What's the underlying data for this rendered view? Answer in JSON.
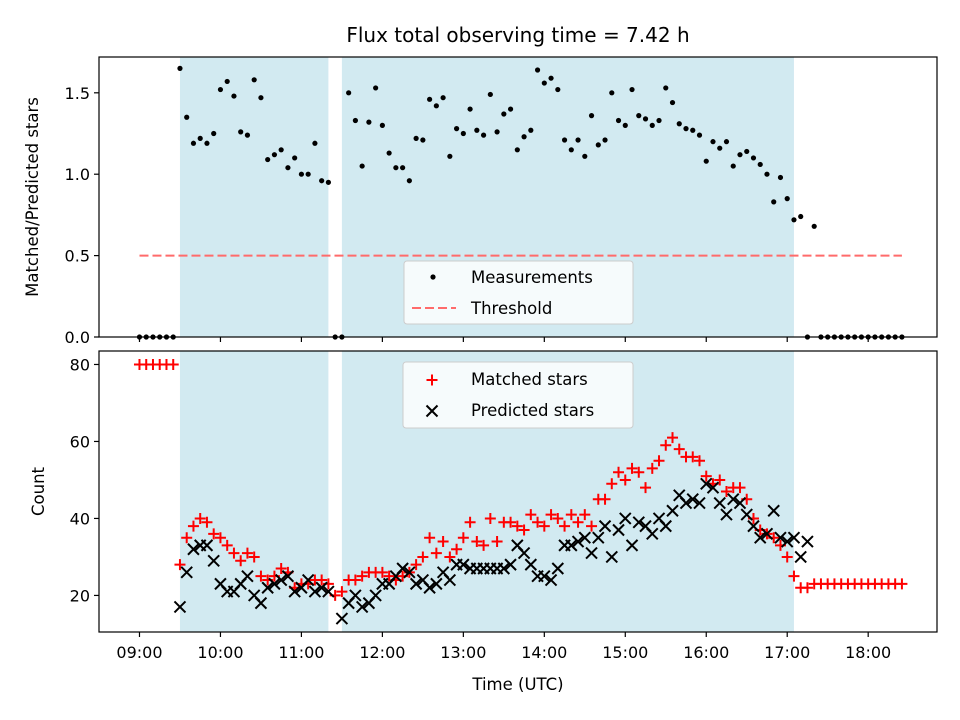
{
  "chart_data": [
    {
      "type": "scatter",
      "title": "Flux total observing time = 7.42 h",
      "xlabel": "",
      "ylabel": "Matched/Predicted stars",
      "ylim": [
        0,
        1.72
      ],
      "yticks": [
        "0.0",
        "0.5",
        "1.0",
        "1.5"
      ],
      "shaded_intervals": [
        [
          "09:30",
          "11:20"
        ],
        [
          "11:30",
          "17:05"
        ]
      ],
      "threshold": 0.5,
      "legend": {
        "position": "lower-center",
        "entries": [
          "Measurements",
          "Threshold"
        ]
      },
      "colors": {
        "shade": "#add8e6",
        "points": "#000000",
        "threshold": "#ff6b6b"
      },
      "series": [
        {
          "name": "Measurements",
          "x": [
            "09:00",
            "09:05",
            "09:10",
            "09:15",
            "09:20",
            "09:25",
            "09:30",
            "09:35",
            "09:40",
            "09:45",
            "09:50",
            "09:55",
            "10:00",
            "10:05",
            "10:10",
            "10:15",
            "10:20",
            "10:25",
            "10:30",
            "10:35",
            "10:40",
            "10:45",
            "10:50",
            "10:55",
            "11:00",
            "11:05",
            "11:10",
            "11:15",
            "11:20",
            "11:25",
            "11:30",
            "11:35",
            "11:40",
            "11:45",
            "11:50",
            "11:55",
            "12:00",
            "12:05",
            "12:10",
            "12:15",
            "12:20",
            "12:25",
            "12:30",
            "12:35",
            "12:40",
            "12:45",
            "12:50",
            "12:55",
            "13:00",
            "13:05",
            "13:10",
            "13:15",
            "13:20",
            "13:25",
            "13:30",
            "13:35",
            "13:40",
            "13:45",
            "13:50",
            "13:55",
            "14:00",
            "14:05",
            "14:10",
            "14:15",
            "14:20",
            "14:25",
            "14:30",
            "14:35",
            "14:40",
            "14:45",
            "14:50",
            "14:55",
            "15:00",
            "15:05",
            "15:10",
            "15:15",
            "15:20",
            "15:25",
            "15:30",
            "15:35",
            "15:40",
            "15:45",
            "15:50",
            "15:55",
            "16:00",
            "16:05",
            "16:10",
            "16:15",
            "16:20",
            "16:25",
            "16:30",
            "16:35",
            "16:40",
            "16:45",
            "16:50",
            "16:55",
            "17:00",
            "17:05",
            "17:10",
            "17:15",
            "17:20",
            "17:25",
            "17:30",
            "17:35",
            "17:40",
            "17:45",
            "17:50",
            "17:55",
            "18:00",
            "18:05",
            "18:10",
            "18:15",
            "18:20",
            "18:25"
          ],
          "y": [
            0,
            0,
            0,
            0,
            0,
            0,
            1.65,
            1.35,
            1.19,
            1.22,
            1.19,
            1.25,
            1.52,
            1.57,
            1.48,
            1.26,
            1.24,
            1.58,
            1.47,
            1.09,
            1.12,
            1.15,
            1.04,
            1.1,
            1.0,
            1.0,
            1.19,
            0.96,
            0.95,
            0,
            0,
            1.5,
            1.33,
            1.05,
            1.32,
            1.53,
            1.3,
            1.13,
            1.04,
            1.04,
            0.96,
            1.22,
            1.21,
            1.46,
            1.42,
            1.47,
            1.11,
            1.28,
            1.25,
            1.4,
            1.27,
            1.24,
            1.49,
            1.26,
            1.37,
            1.4,
            1.15,
            1.23,
            1.27,
            1.64,
            1.56,
            1.59,
            1.52,
            1.21,
            1.15,
            1.21,
            1.11,
            1.36,
            1.18,
            1.21,
            1.5,
            1.33,
            1.3,
            1.52,
            1.36,
            1.34,
            1.3,
            1.33,
            1.53,
            1.44,
            1.31,
            1.28,
            1.27,
            1.24,
            1.08,
            1.2,
            1.16,
            1.2,
            1.05,
            1.12,
            1.14,
            1.1,
            1.06,
            1.0,
            0.83,
            0.98,
            0.85,
            0.72,
            0.74,
            0,
            0.68,
            0,
            0,
            0,
            0,
            0,
            0,
            0,
            0,
            0,
            0,
            0,
            0,
            0
          ]
        }
      ]
    },
    {
      "type": "scatter",
      "title": "",
      "xlabel": "Time (UTC)",
      "ylabel": "Count",
      "ylim": [
        10.5,
        83.5
      ],
      "yticks": [
        "20",
        "40",
        "60",
        "80"
      ],
      "xticks": [
        "09:00",
        "10:00",
        "11:00",
        "12:00",
        "13:00",
        "14:00",
        "15:00",
        "16:00",
        "17:00",
        "18:00"
      ],
      "shaded_intervals": [
        [
          "09:30",
          "11:20"
        ],
        [
          "11:30",
          "17:05"
        ]
      ],
      "legend": {
        "position": "top-center",
        "entries": [
          "Matched stars",
          "Predicted stars"
        ]
      },
      "colors": {
        "shade": "#add8e6",
        "matched": "#ff0000",
        "predicted": "#000000"
      },
      "series": [
        {
          "name": "Matched stars",
          "marker": "+",
          "x": [
            "09:00",
            "09:05",
            "09:10",
            "09:15",
            "09:20",
            "09:25",
            "09:30",
            "09:35",
            "09:40",
            "09:45",
            "09:50",
            "09:55",
            "10:00",
            "10:05",
            "10:10",
            "10:15",
            "10:20",
            "10:25",
            "10:30",
            "10:35",
            "10:40",
            "10:45",
            "10:50",
            "10:55",
            "11:00",
            "11:05",
            "11:10",
            "11:15",
            "11:20",
            "11:25",
            "11:30",
            "11:35",
            "11:40",
            "11:45",
            "11:50",
            "11:55",
            "12:00",
            "12:05",
            "12:10",
            "12:15",
            "12:20",
            "12:25",
            "12:30",
            "12:35",
            "12:40",
            "12:45",
            "12:50",
            "12:55",
            "13:00",
            "13:05",
            "13:10",
            "13:15",
            "13:20",
            "13:25",
            "13:30",
            "13:35",
            "13:40",
            "13:45",
            "13:50",
            "13:55",
            "14:00",
            "14:05",
            "14:10",
            "14:15",
            "14:20",
            "14:25",
            "14:30",
            "14:35",
            "14:40",
            "14:45",
            "14:50",
            "14:55",
            "15:00",
            "15:05",
            "15:10",
            "15:15",
            "15:20",
            "15:25",
            "15:30",
            "15:35",
            "15:40",
            "15:45",
            "15:50",
            "15:55",
            "16:00",
            "16:05",
            "16:10",
            "16:15",
            "16:20",
            "16:25",
            "16:30",
            "16:35",
            "16:40",
            "16:45",
            "16:50",
            "16:55",
            "17:00",
            "17:05",
            "17:10",
            "17:15",
            "17:20",
            "17:25",
            "17:30",
            "17:35",
            "17:40",
            "17:45",
            "17:50",
            "17:55",
            "18:00",
            "18:05",
            "18:10",
            "18:15",
            "18:20",
            "18:25"
          ],
          "y": [
            80,
            80,
            80,
            80,
            80,
            80,
            28,
            35,
            38,
            40,
            39,
            36,
            35,
            33,
            31,
            29,
            31,
            30,
            25,
            24,
            25,
            27,
            26,
            22,
            23,
            23,
            24,
            24,
            23,
            20,
            21,
            24,
            24,
            25,
            26,
            26,
            26,
            25,
            24,
            25,
            26,
            28,
            30,
            35,
            31,
            34,
            30,
            32,
            35,
            39,
            34,
            33,
            40,
            34,
            39,
            39,
            38,
            37,
            41,
            39,
            38,
            41,
            40,
            38,
            41,
            39,
            41,
            38,
            45,
            45,
            49,
            52,
            50,
            53,
            52,
            48,
            53,
            55,
            59,
            61,
            58,
            56,
            56,
            55,
            51,
            49,
            50,
            47,
            48,
            48,
            45,
            40,
            37,
            36,
            35,
            33,
            30,
            25,
            22,
            22,
            23,
            23,
            23,
            23,
            23,
            23,
            23,
            23,
            23,
            23,
            23,
            23,
            23,
            23
          ]
        },
        {
          "name": "Predicted stars",
          "marker": "x",
          "x": [
            "09:30",
            "09:35",
            "09:40",
            "09:45",
            "09:50",
            "09:55",
            "10:00",
            "10:05",
            "10:10",
            "10:15",
            "10:20",
            "10:25",
            "10:30",
            "10:35",
            "10:40",
            "10:45",
            "10:50",
            "10:55",
            "11:00",
            "11:05",
            "11:10",
            "11:15",
            "11:20",
            "11:30",
            "11:35",
            "11:40",
            "11:45",
            "11:50",
            "11:55",
            "12:00",
            "12:05",
            "12:10",
            "12:15",
            "12:20",
            "12:25",
            "12:30",
            "12:35",
            "12:40",
            "12:45",
            "12:50",
            "12:55",
            "13:00",
            "13:05",
            "13:10",
            "13:15",
            "13:20",
            "13:25",
            "13:30",
            "13:35",
            "13:40",
            "13:45",
            "13:50",
            "13:55",
            "14:00",
            "14:05",
            "14:10",
            "14:15",
            "14:20",
            "14:25",
            "14:30",
            "14:35",
            "14:40",
            "14:45",
            "14:50",
            "14:55",
            "15:00",
            "15:05",
            "15:10",
            "15:15",
            "15:20",
            "15:25",
            "15:30",
            "15:35",
            "15:40",
            "15:45",
            "15:50",
            "15:55",
            "16:00",
            "16:05",
            "16:10",
            "16:15",
            "16:20",
            "16:25",
            "16:30",
            "16:35",
            "16:40",
            "16:45",
            "16:50",
            "16:55",
            "17:00",
            "17:05",
            "17:10",
            "17:15"
          ],
          "y": [
            17,
            26,
            32,
            33,
            33,
            29,
            23,
            21,
            21,
            23,
            25,
            20,
            18,
            22,
            23,
            24,
            25,
            21,
            22,
            24,
            21,
            22,
            21,
            14,
            18,
            20,
            17,
            18,
            20,
            23,
            23,
            25,
            27,
            26,
            23,
            24,
            22,
            23,
            26,
            24,
            28,
            28,
            27,
            27,
            27,
            27,
            27,
            27,
            28,
            33,
            31,
            28,
            25,
            25,
            24,
            27,
            33,
            33,
            34,
            35,
            31,
            35,
            38,
            30,
            37,
            40,
            33,
            39,
            38,
            36,
            40,
            38,
            42,
            46,
            44,
            45,
            44,
            49,
            48,
            44,
            41,
            45,
            44,
            41,
            38,
            35,
            36,
            42,
            35,
            34,
            35,
            30,
            34
          ]
        }
      ]
    }
  ]
}
